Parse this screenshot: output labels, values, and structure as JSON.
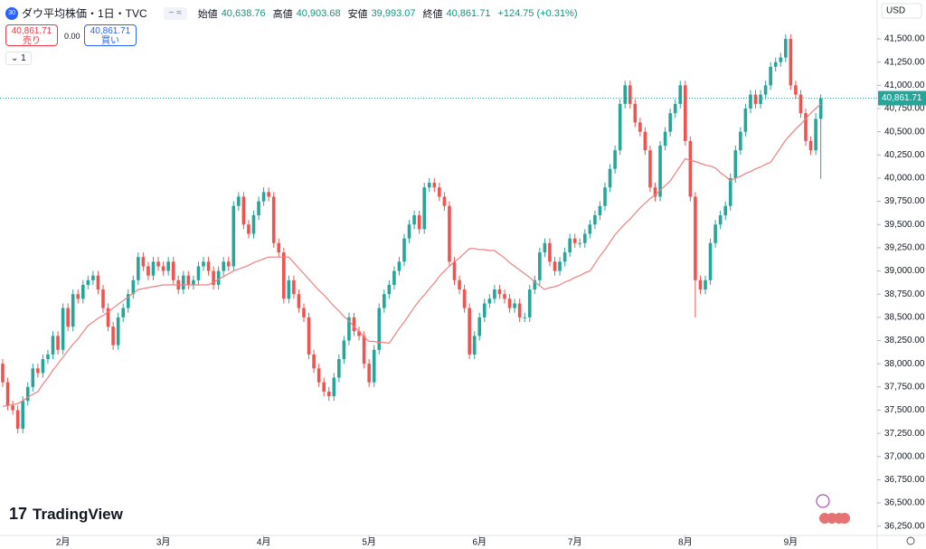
{
  "header": {
    "badge": "30",
    "title": "ダウ平均株価・1日・TVC",
    "open_label": "始値",
    "open": "40,638.76",
    "high_label": "高値",
    "high": "40,903.68",
    "low_label": "安値",
    "low": "39,993.07",
    "close_label": "終値",
    "close": "40,861.71",
    "change": "+124.75 (+0.31%)"
  },
  "trade": {
    "sell_price": "40,861.71",
    "sell": "売り",
    "spread": "0.00",
    "buy_price": "40,861.71",
    "buy": "買い"
  },
  "indicator_count": "1",
  "currency": "USD",
  "last_price_label": "40,861.71",
  "logo": "TradingView",
  "chart_data": {
    "type": "candlestick",
    "up_color": "#26a69a",
    "down_color": "#ef5350",
    "ma_color": "#f08080",
    "grid": false,
    "ylim": [
      36150,
      41900
    ],
    "yticks": [
      {
        "value": 36250,
        "label": "36,250.00"
      },
      {
        "value": 36500,
        "label": "36,500.00"
      },
      {
        "value": 36750,
        "label": "36,750.00"
      },
      {
        "value": 37000,
        "label": "37,000.00"
      },
      {
        "value": 37250,
        "label": "37,250.00"
      },
      {
        "value": 37500,
        "label": "37,500.00"
      },
      {
        "value": 37750,
        "label": "37,750.00"
      },
      {
        "value": 38000,
        "label": "38,000.00"
      },
      {
        "value": 38250,
        "label": "38,250.00"
      },
      {
        "value": 38500,
        "label": "38,500.00"
      },
      {
        "value": 38750,
        "label": "38,750.00"
      },
      {
        "value": 39000,
        "label": "39,000.00"
      },
      {
        "value": 39250,
        "label": "39,250.00"
      },
      {
        "value": 39500,
        "label": "39,500.00"
      },
      {
        "value": 39750,
        "label": "39,750.00"
      },
      {
        "value": 40000,
        "label": "40,000.00"
      },
      {
        "value": 40250,
        "label": "40,250.00"
      },
      {
        "value": 40500,
        "label": "40,500.00"
      },
      {
        "value": 40750,
        "label": "40,750.00"
      },
      {
        "value": 41000,
        "label": "41,000.00"
      },
      {
        "value": 41250,
        "label": "41,250.00"
      },
      {
        "value": 41500,
        "label": "41,500.00"
      }
    ],
    "xticks": [
      {
        "value": 12,
        "label": "2月"
      },
      {
        "value": 32,
        "label": "3月"
      },
      {
        "value": 52,
        "label": "4月"
      },
      {
        "value": 73,
        "label": "5月"
      },
      {
        "value": 95,
        "label": "6月"
      },
      {
        "value": 114,
        "label": "7月"
      },
      {
        "value": 136,
        "label": "8月"
      },
      {
        "value": 157,
        "label": "9月"
      }
    ],
    "open": [
      38000,
      37800,
      37550,
      37500,
      37300,
      37600,
      37750,
      37950,
      37900,
      38050,
      38100,
      38300,
      38150,
      38600,
      38400,
      38750,
      38700,
      38850,
      38900,
      38950,
      38800,
      38600,
      38400,
      38200,
      38500,
      38600,
      38750,
      38900,
      39150,
      39050,
      38950,
      39100,
      39050,
      39000,
      39100,
      38900,
      38800,
      38950,
      38850,
      38900,
      39050,
      39100,
      39000,
      38850,
      39000,
      39100,
      39050,
      39700,
      39800,
      39500,
      39400,
      39600,
      39750,
      39850,
      39800,
      39300,
      39200,
      38700,
      38900,
      38750,
      38600,
      38500,
      38100,
      37950,
      37800,
      37700,
      37650,
      37850,
      38050,
      38250,
      38500,
      38350,
      38300,
      38000,
      37800,
      38150,
      38600,
      38750,
      38850,
      39000,
      39100,
      39350,
      39500,
      39600,
      39450,
      39900,
      39950,
      39900,
      39800,
      39700,
      39100,
      38900,
      38800,
      38600,
      38100,
      38300,
      38500,
      38650,
      38700,
      38800,
      38750,
      38700,
      38600,
      38650,
      38500,
      38500,
      38800,
      38900,
      39200,
      39300,
      39100,
      39000,
      39100,
      39200,
      39350,
      39300,
      39300,
      39400,
      39500,
      39600,
      39700,
      39900,
      40100,
      40300,
      40800,
      41000,
      40800,
      40600,
      40500,
      40300,
      39900,
      39800,
      40350,
      40500,
      40700,
      40800,
      41000,
      40400,
      39800,
      38900,
      38800,
      38900,
      39300,
      39500,
      39600,
      39700,
      40000,
      40300,
      40500,
      40750,
      40900,
      40800,
      40900,
      41000,
      41200,
      41250,
      41300,
      41500,
      41000,
      40900,
      40700,
      40400,
      40300,
      40638.76
    ],
    "high": [
      38050,
      37850,
      37600,
      37550,
      37650,
      37800,
      38000,
      38000,
      38100,
      38150,
      38350,
      38350,
      38650,
      38650,
      38800,
      38800,
      38900,
      38950,
      39000,
      39000,
      38850,
      38650,
      38450,
      38550,
      38650,
      38800,
      38950,
      39200,
      39200,
      39100,
      39150,
      39150,
      39100,
      39150,
      39150,
      38950,
      39000,
      39000,
      38950,
      39100,
      39150,
      39150,
      39050,
      39050,
      39150,
      39150,
      39750,
      39850,
      39850,
      39550,
      39650,
      39800,
      39900,
      39900,
      39850,
      39350,
      39250,
      38950,
      38950,
      38800,
      38650,
      38550,
      38150,
      38000,
      37850,
      37750,
      37900,
      38100,
      38300,
      38550,
      38550,
      38400,
      38350,
      38050,
      38200,
      38650,
      38800,
      38900,
      39050,
      39150,
      39400,
      39550,
      39650,
      39650,
      39950,
      40000,
      40000,
      39950,
      39850,
      39750,
      39150,
      38950,
      38850,
      38650,
      38350,
      38550,
      38700,
      38750,
      38850,
      38850,
      38800,
      38750,
      38700,
      38700,
      38550,
      38850,
      38950,
      39250,
      39350,
      39350,
      39150,
      39150,
      39250,
      39400,
      39400,
      39350,
      39450,
      39550,
      39650,
      39750,
      39950,
      40150,
      40350,
      40850,
      41050,
      41050,
      40850,
      40650,
      40550,
      40350,
      39950,
      40400,
      40550,
      40750,
      40850,
      41050,
      41050,
      40450,
      39850,
      38950,
      38950,
      39350,
      39550,
      39650,
      39750,
      40050,
      40350,
      40550,
      40800,
      40950,
      40950,
      40950,
      41050,
      41250,
      41300,
      41350,
      41550,
      41550,
      41050,
      40950,
      40750,
      40450,
      40700,
      40903.68
    ],
    "low": [
      37750,
      37500,
      37450,
      37250,
      37250,
      37550,
      37700,
      37850,
      37850,
      38000,
      38050,
      38100,
      38100,
      38350,
      38350,
      38650,
      38650,
      38800,
      38850,
      38750,
      38550,
      38350,
      38150,
      38150,
      38450,
      38550,
      38700,
      38850,
      39000,
      38900,
      38900,
      39000,
      38950,
      38950,
      38850,
      38750,
      38750,
      38800,
      38800,
      38850,
      39000,
      38950,
      38800,
      38800,
      38950,
      39000,
      39000,
      39650,
      39450,
      39350,
      39350,
      39550,
      39700,
      39750,
      39250,
      39150,
      38650,
      38650,
      38700,
      38550,
      38450,
      38050,
      37900,
      37750,
      37650,
      37600,
      37600,
      37800,
      38000,
      38200,
      38300,
      38250,
      37950,
      37750,
      37750,
      38100,
      38550,
      38700,
      38800,
      38950,
      39050,
      39300,
      39450,
      39400,
      39400,
      39850,
      39850,
      39750,
      39650,
      39050,
      38850,
      38750,
      38550,
      38050,
      38050,
      38250,
      38450,
      38600,
      38650,
      38700,
      38650,
      38550,
      38550,
      38450,
      38450,
      38450,
      38750,
      38850,
      39150,
      39050,
      38950,
      38950,
      39050,
      39150,
      39250,
      39250,
      39250,
      39350,
      39450,
      39550,
      39650,
      39850,
      40050,
      40250,
      40750,
      40750,
      40550,
      40450,
      40250,
      39850,
      39750,
      39750,
      40300,
      40450,
      40650,
      40750,
      40350,
      39750,
      38500,
      38750,
      38750,
      38850,
      39250,
      39450,
      39550,
      39650,
      39950,
      40250,
      40450,
      40700,
      40750,
      40750,
      40850,
      40950,
      41150,
      41200,
      41250,
      40950,
      40850,
      40650,
      40350,
      40250,
      40250,
      39993.07
    ],
    "close": [
      37800,
      37550,
      37500,
      37300,
      37600,
      37750,
      37950,
      37900,
      38050,
      38100,
      38300,
      38150,
      38600,
      38400,
      38750,
      38700,
      38850,
      38900,
      38950,
      38800,
      38600,
      38400,
      38200,
      38500,
      38600,
      38750,
      38900,
      39150,
      39050,
      38950,
      39100,
      39050,
      39000,
      39100,
      38900,
      38800,
      38950,
      38850,
      38900,
      39050,
      39100,
      39000,
      38850,
      39000,
      39100,
      39050,
      39700,
      39800,
      39500,
      39400,
      39600,
      39750,
      39850,
      39800,
      39300,
      39200,
      38700,
      38900,
      38750,
      38600,
      38500,
      38100,
      37950,
      37800,
      37700,
      37650,
      37850,
      38050,
      38250,
      38500,
      38350,
      38300,
      38000,
      37800,
      38150,
      38600,
      38750,
      38850,
      39000,
      39100,
      39350,
      39500,
      39600,
      39450,
      39900,
      39950,
      39900,
      39800,
      39700,
      39100,
      38900,
      38800,
      38600,
      38100,
      38300,
      38500,
      38650,
      38700,
      38800,
      38750,
      38700,
      38600,
      38650,
      38500,
      38500,
      38800,
      38900,
      39200,
      39300,
      39100,
      39000,
      39100,
      39200,
      39350,
      39300,
      39300,
      39400,
      39500,
      39600,
      39700,
      39900,
      40100,
      40300,
      40800,
      41000,
      40800,
      40600,
      40500,
      40300,
      39900,
      39800,
      40350,
      40500,
      40700,
      40800,
      41000,
      40400,
      39800,
      38900,
      38800,
      38900,
      39300,
      39500,
      39600,
      39700,
      40000,
      40300,
      40500,
      40750,
      40900,
      40800,
      40900,
      41000,
      41200,
      41250,
      41300,
      41500,
      41000,
      40900,
      40700,
      40400,
      40300,
      40638.76,
      40861.71
    ],
    "ma": [
      37540,
      37550,
      37560,
      37570,
      37600,
      37640,
      37670,
      37700,
      37780,
      37850,
      37930,
      38000,
      38070,
      38140,
      38210,
      38270,
      38340,
      38410,
      38450,
      38490,
      38520,
      38560,
      38600,
      38640,
      38680,
      38720,
      38760,
      38800,
      38810,
      38820,
      38830,
      38840,
      38850,
      38850,
      38850,
      38850,
      38850,
      38850,
      38850,
      38850,
      38850,
      38850,
      38880,
      38910,
      38940,
      38970,
      39000,
      39020,
      39040,
      39060,
      39090,
      39110,
      39130,
      39150,
      39150,
      39150,
      39150,
      39150,
      39090,
      39030,
      38970,
      38910,
      38850,
      38790,
      38740,
      38680,
      38620,
      38570,
      38510,
      38460,
      38400,
      38350,
      38290,
      38240,
      38240,
      38230,
      38230,
      38220,
      38300,
      38380,
      38450,
      38530,
      38610,
      38680,
      38740,
      38810,
      38870,
      38940,
      39000,
      39050,
      39100,
      39140,
      39190,
      39240,
      39240,
      39230,
      39230,
      39220,
      39220,
      39180,
      39140,
      39090,
      39050,
      39010,
      38970,
      38930,
      38880,
      38840,
      38800,
      38820,
      38830,
      38850,
      38880,
      38900,
      38930,
      38950,
      38980,
      39000,
      39080,
      39160,
      39230,
      39310,
      39390,
      39450,
      39510,
      39560,
      39620,
      39680,
      39730,
      39780,
      39820,
      39870,
      39920,
      39970,
      40050,
      40130,
      40210,
      40190,
      40180,
      40160,
      40140,
      40130,
      40110,
      40060,
      40020,
      39970,
      40000,
      40020,
      40050,
      40070,
      40100,
      40120,
      40150,
      40170,
      40250,
      40330,
      40410,
      40470,
      40530,
      40580,
      40640,
      40700,
      40750,
      40800
    ]
  }
}
